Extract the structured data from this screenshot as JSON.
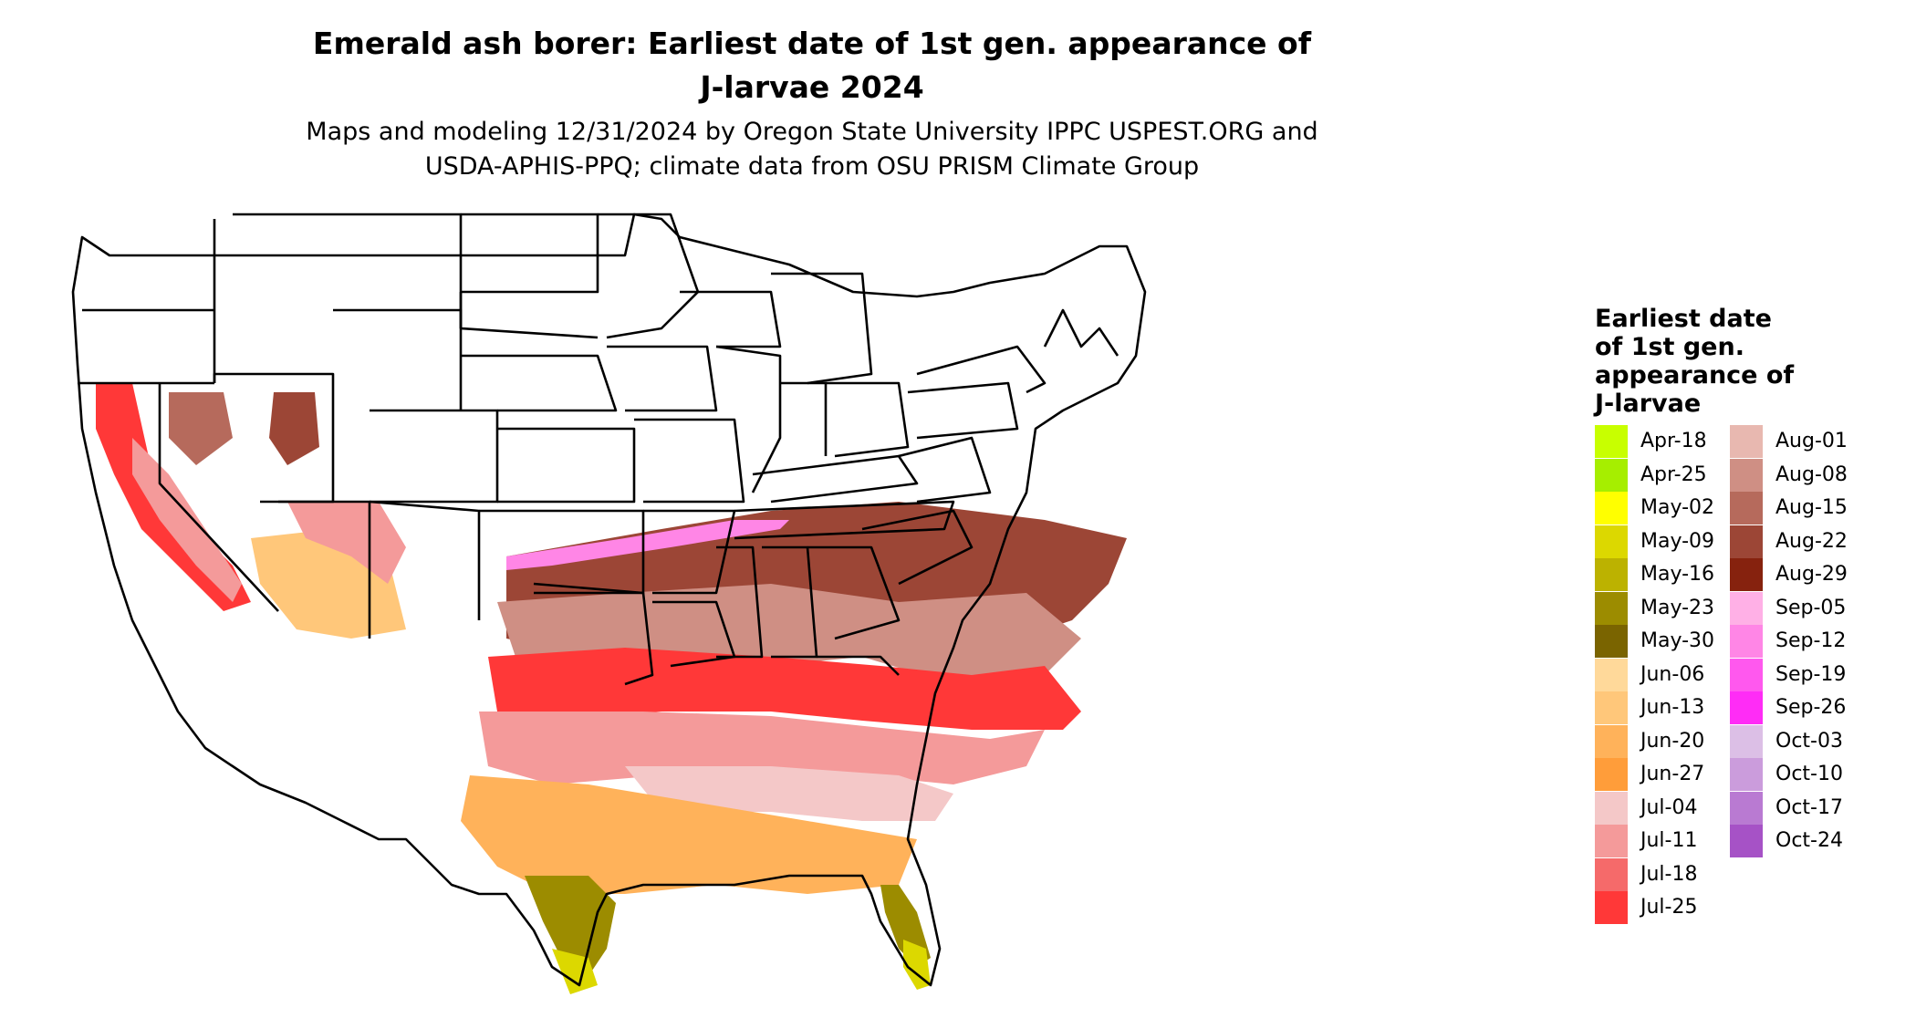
{
  "title_line1": "Emerald ash borer: Earliest date of 1st gen. appearance of",
  "title_line2": "J-larvae 2024",
  "subtitle_line1": "Maps and modeling 12/31/2024 by Oregon State University IPPC USPEST.ORG and",
  "subtitle_line2": "USDA-APHIS-PPQ; climate data from OSU PRISM Climate Group",
  "legend": {
    "title_lines": [
      "Earliest date",
      "of 1st gen.",
      "appearance of",
      "J-larvae"
    ],
    "column1": [
      {
        "label": "Apr-18",
        "color": "#c8ff00"
      },
      {
        "label": "Apr-25",
        "color": "#a6ee00"
      },
      {
        "label": "May-02",
        "color": "#ffff00"
      },
      {
        "label": "May-09",
        "color": "#dcd800"
      },
      {
        "label": "May-16",
        "color": "#bcb200"
      },
      {
        "label": "May-23",
        "color": "#9c8c00"
      },
      {
        "label": "May-30",
        "color": "#7a6400"
      },
      {
        "label": "Jun-06",
        "color": "#ffd99a"
      },
      {
        "label": "Jun-13",
        "color": "#ffc77a"
      },
      {
        "label": "Jun-20",
        "color": "#ffb25a"
      },
      {
        "label": "Jun-27",
        "color": "#ff9d3a"
      },
      {
        "label": "Jul-04",
        "color": "#f4c8c8"
      },
      {
        "label": "Jul-11",
        "color": "#f49a9a"
      },
      {
        "label": "Jul-18",
        "color": "#f56a6a"
      },
      {
        "label": "Jul-25",
        "color": "#ff3838"
      }
    ],
    "column2": [
      {
        "label": "Aug-01",
        "color": "#e8b8b0"
      },
      {
        "label": "Aug-08",
        "color": "#cf8f84"
      },
      {
        "label": "Aug-15",
        "color": "#b66a5c"
      },
      {
        "label": "Aug-22",
        "color": "#9c4636"
      },
      {
        "label": "Aug-29",
        "color": "#86220e"
      },
      {
        "label": "Sep-05",
        "color": "#ffb0e6"
      },
      {
        "label": "Sep-12",
        "color": "#ff86e6"
      },
      {
        "label": "Sep-19",
        "color": "#ff58ee"
      },
      {
        "label": "Sep-26",
        "color": "#ff2cf6"
      },
      {
        "label": "Oct-03",
        "color": "#dcbfe6"
      },
      {
        "label": "Oct-10",
        "color": "#cb9cdc"
      },
      {
        "label": "Oct-17",
        "color": "#b97ad2"
      },
      {
        "label": "Oct-24",
        "color": "#a652c6"
      }
    ]
  }
}
